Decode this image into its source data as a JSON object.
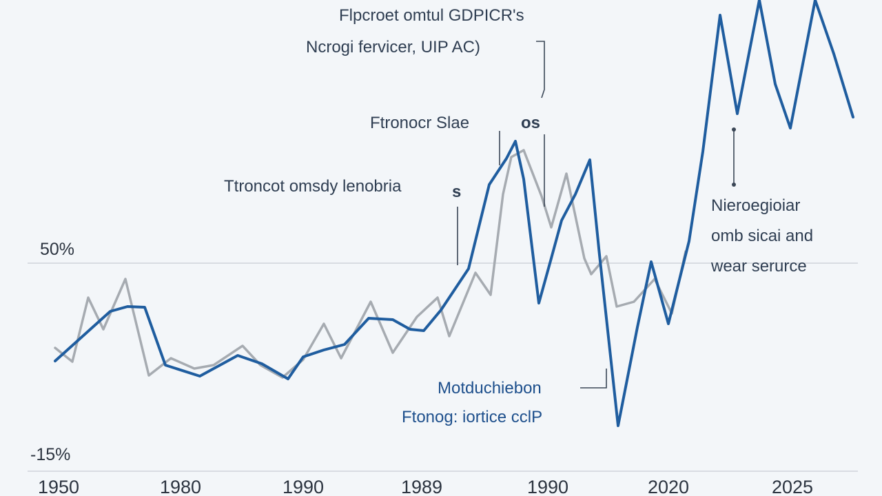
{
  "chart_data": {
    "type": "line",
    "x_tick_labels": [
      "1950",
      "1980",
      "1990",
      "1989",
      "1990",
      "2020",
      "2025"
    ],
    "y_tick_labels": [
      "50%",
      "-15%"
    ],
    "annotations": [
      [
        "Flpcroet omtul GDPICR's",
        "Ncrogi fervicer, UIP AC)"
      ],
      [
        "Ftronocr Slae",
        "os"
      ],
      [
        "Ttroncot omsdy lenobria",
        "s"
      ],
      [
        "Nieroegioiar",
        "omb sicai and",
        "wear serurce"
      ],
      [
        "Motduchiebon",
        "Ftonog: iortice cclP"
      ]
    ],
    "colors": {
      "series_blue": "#1f5d9f",
      "series_gray": "#a6abb1"
    },
    "series": [
      {
        "color": "#1f5d9f",
        "values": [
          [
            80,
            524
          ],
          [
            120,
            488
          ],
          [
            160,
            452
          ],
          [
            185,
            445
          ],
          [
            210,
            446
          ],
          [
            240,
            530
          ],
          [
            290,
            546
          ],
          [
            345,
            516
          ],
          [
            380,
            528
          ],
          [
            418,
            550
          ],
          [
            440,
            518
          ],
          [
            470,
            508
          ],
          [
            500,
            500
          ],
          [
            535,
            462
          ],
          [
            570,
            464
          ],
          [
            595,
            478
          ],
          [
            615,
            480
          ],
          [
            640,
            450
          ],
          [
            680,
            390
          ],
          [
            710,
            268
          ],
          [
            735,
            230
          ],
          [
            748,
            205
          ],
          [
            760,
            260
          ],
          [
            782,
            440
          ],
          [
            800,
            375
          ],
          [
            815,
            320
          ],
          [
            835,
            282
          ],
          [
            856,
            232
          ],
          [
            870,
            370
          ],
          [
            897,
            618
          ],
          [
            925,
            475
          ],
          [
            945,
            380
          ],
          [
            970,
            470
          ],
          [
            1000,
            350
          ],
          [
            1020,
            220
          ],
          [
            1045,
            22
          ],
          [
            1070,
            165
          ],
          [
            1102,
            0
          ],
          [
            1125,
            122
          ],
          [
            1147,
            186
          ],
          [
            1183,
            0
          ],
          [
            1210,
            78
          ],
          [
            1238,
            170
          ]
        ]
      },
      {
        "color": "#a6abb1",
        "values": [
          [
            80,
            505
          ],
          [
            105,
            525
          ],
          [
            128,
            432
          ],
          [
            150,
            478
          ],
          [
            182,
            405
          ],
          [
            216,
            545
          ],
          [
            248,
            520
          ],
          [
            282,
            535
          ],
          [
            310,
            530
          ],
          [
            352,
            502
          ],
          [
            378,
            530
          ],
          [
            410,
            548
          ],
          [
            440,
            522
          ],
          [
            470,
            470
          ],
          [
            495,
            520
          ],
          [
            538,
            438
          ],
          [
            570,
            512
          ],
          [
            605,
            460
          ],
          [
            635,
            432
          ],
          [
            652,
            488
          ],
          [
            690,
            396
          ],
          [
            712,
            428
          ],
          [
            730,
            282
          ],
          [
            742,
            228
          ],
          [
            760,
            218
          ],
          [
            786,
            285
          ],
          [
            800,
            330
          ],
          [
            822,
            252
          ],
          [
            848,
            375
          ],
          [
            858,
            398
          ],
          [
            880,
            372
          ],
          [
            895,
            445
          ],
          [
            920,
            438
          ],
          [
            950,
            405
          ],
          [
            975,
            455
          ],
          [
            995,
            365
          ]
        ]
      }
    ]
  }
}
